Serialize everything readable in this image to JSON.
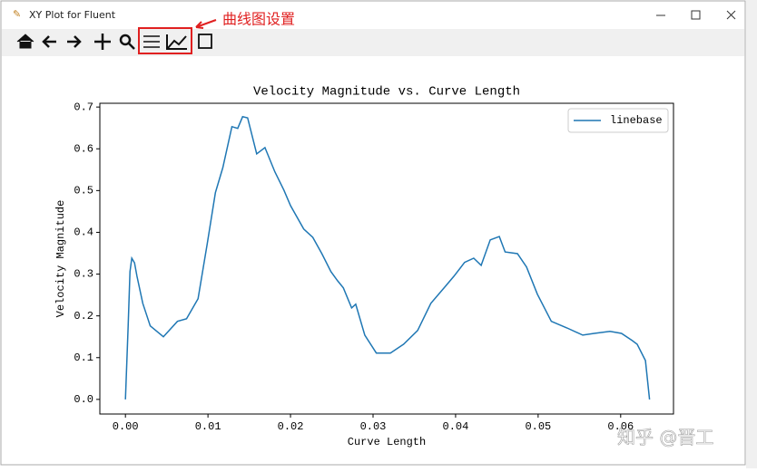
{
  "window": {
    "title": "XY Plot for Fluent"
  },
  "annotation": "曲线图设置",
  "watermark": "知乎 @晋工",
  "chart_data": {
    "type": "line",
    "title": "Velocity Magnitude vs. Curve Length",
    "x_label": "Curve Length",
    "y_label": "Velocity Magnitude",
    "x": [
      0,
      0.00033,
      0.00055,
      0.00077,
      0.0011,
      0.0014,
      0.0021,
      0.003,
      0.0046,
      0.0063,
      0.0074,
      0.0088,
      0.0099,
      0.0109,
      0.0118,
      0.0129,
      0.0136,
      0.0142,
      0.0148,
      0.0159,
      0.0169,
      0.0181,
      0.0192,
      0.02,
      0.0216,
      0.0227,
      0.0238,
      0.0249,
      0.0257,
      0.0264,
      0.0274,
      0.0279,
      0.029,
      0.0304,
      0.0321,
      0.0337,
      0.0354,
      0.037,
      0.0387,
      0.0398,
      0.0411,
      0.0422,
      0.0431,
      0.0442,
      0.0453,
      0.046,
      0.0475,
      0.0486,
      0.0499,
      0.0516,
      0.0535,
      0.0554,
      0.0568,
      0.0587,
      0.0601,
      0.0614,
      0.062,
      0.063,
      0.0635
    ],
    "series": [
      {
        "name": "linebase",
        "color": "#1f77b4",
        "values": [
          0,
          0.176,
          0.306,
          0.338,
          0.327,
          0.295,
          0.23,
          0.176,
          0.15,
          0.187,
          0.193,
          0.241,
          0.371,
          0.495,
          0.555,
          0.653,
          0.649,
          0.677,
          0.674,
          0.588,
          0.603,
          0.545,
          0.501,
          0.464,
          0.408,
          0.388,
          0.349,
          0.306,
          0.284,
          0.267,
          0.219,
          0.228,
          0.154,
          0.111,
          0.111,
          0.132,
          0.165,
          0.23,
          0.269,
          0.295,
          0.328,
          0.338,
          0.321,
          0.382,
          0.39,
          0.353,
          0.349,
          0.317,
          0.252,
          0.187,
          0.171,
          0.154,
          0.158,
          0.163,
          0.158,
          0.141,
          0.132,
          0.093,
          0
        ]
      }
    ],
    "xlim": [
      -0.0031,
      0.0664
    ],
    "ylim": [
      -0.035,
      0.709
    ],
    "xticks": [
      {
        "value": 0,
        "label": "0.00"
      },
      0.01,
      0.02,
      0.03,
      0.04,
      0.05,
      0.06
    ],
    "yticks": [
      {
        "value": 0,
        "label": "0.0"
      },
      0.1,
      0.2,
      0.3,
      0.4,
      0.5,
      0.6,
      0.7
    ],
    "legend": "upper right"
  }
}
